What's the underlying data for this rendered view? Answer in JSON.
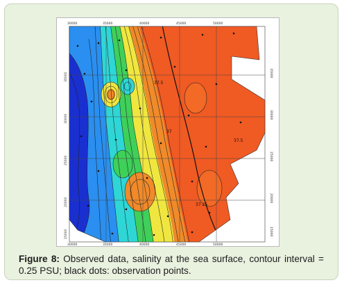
{
  "caption": {
    "label": "Figure 8:",
    "text": "Observed data, salinity at the sea surface, contour interval = 0.25 PSU; black dots: observation points."
  },
  "figure": {
    "top_tick_labels": [
      "30000",
      "35000",
      "40000",
      "45000",
      "50000"
    ],
    "left_tick_labels": [
      "35000",
      "30000",
      "25000",
      "20000",
      "15000"
    ],
    "right_tick_labels": [
      "35000",
      "30000",
      "25000",
      "20000",
      "15000"
    ],
    "bottom_tick_labels": [
      "30000",
      "35000",
      "40000",
      "45000",
      "50000"
    ],
    "contour_labels": [
      "37",
      "37.5",
      "37.25",
      "37.5"
    ],
    "colors": {
      "fresh": "#1a2fd0",
      "mid_blue": "#2a8ff0",
      "cyan": "#2fd6d6",
      "green": "#3fd05a",
      "yellow": "#f0e640",
      "orange": "#f09a2a",
      "salty": "#f05a23"
    },
    "observation_point_count_shown": "many"
  }
}
